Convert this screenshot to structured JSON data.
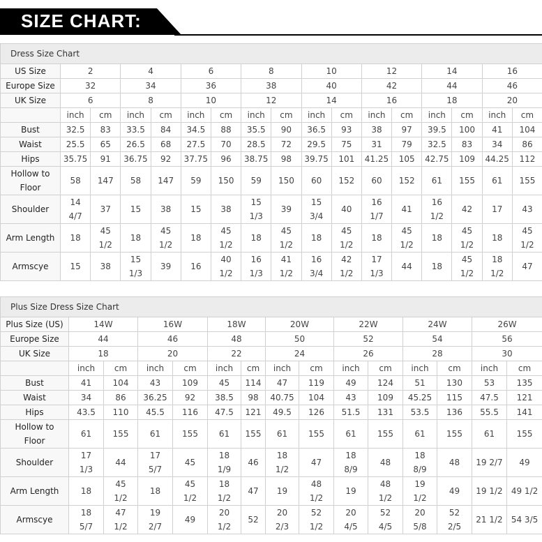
{
  "header": {
    "title": "SIZE CHART:"
  },
  "tables": [
    {
      "id": "dress",
      "title": "Dress Size Chart",
      "size_rows": [
        {
          "label": "US Size",
          "values": [
            "2",
            "4",
            "6",
            "8",
            "10",
            "12",
            "14",
            "16"
          ]
        },
        {
          "label": "Europe Size",
          "values": [
            "32",
            "34",
            "36",
            "38",
            "40",
            "42",
            "44",
            "46"
          ]
        },
        {
          "label": "UK Size",
          "values": [
            "6",
            "8",
            "10",
            "12",
            "14",
            "16",
            "18",
            "20"
          ]
        }
      ],
      "units": [
        "inch",
        "cm"
      ],
      "measure_rows": [
        {
          "label": "Bust",
          "values": [
            "32.5",
            "83",
            "33.5",
            "84",
            "34.5",
            "88",
            "35.5",
            "90",
            "36.5",
            "93",
            "38",
            "97",
            "39.5",
            "100",
            "41",
            "104"
          ]
        },
        {
          "label": "Waist",
          "values": [
            "25.5",
            "65",
            "26.5",
            "68",
            "27.5",
            "70",
            "28.5",
            "72",
            "29.5",
            "75",
            "31",
            "79",
            "32.5",
            "83",
            "34",
            "86"
          ]
        },
        {
          "label": "Hips",
          "values": [
            "35.75",
            "91",
            "36.75",
            "92",
            "37.75",
            "96",
            "38.75",
            "98",
            "39.75",
            "101",
            "41.25",
            "105",
            "42.75",
            "109",
            "44.25",
            "112"
          ]
        },
        {
          "label": "Hollow to\nFloor",
          "tall": true,
          "values": [
            "58",
            "147",
            "58",
            "147",
            "59",
            "150",
            "59",
            "150",
            "60",
            "152",
            "60",
            "152",
            "61",
            "155",
            "61",
            "155"
          ]
        },
        {
          "label": "Shoulder",
          "tall": true,
          "values": [
            "14\n4/7",
            "37",
            "15",
            "38",
            "15",
            "38",
            "15\n1/3",
            "39",
            "15\n3/4",
            "40",
            "16\n1/7",
            "41",
            "16\n1/2",
            "42",
            "17",
            "43"
          ]
        },
        {
          "label": "Arm Length",
          "tall": true,
          "values": [
            "18",
            "45\n1/2",
            "18",
            "45\n1/2",
            "18",
            "45\n1/2",
            "18",
            "45\n1/2",
            "18",
            "45\n1/2",
            "18",
            "45\n1/2",
            "18",
            "45\n1/2",
            "18",
            "45\n1/2"
          ]
        },
        {
          "label": "Armscye",
          "tall": true,
          "values": [
            "15",
            "38",
            "15\n1/3",
            "39",
            "16",
            "40\n1/2",
            "16\n1/3",
            "41\n1/2",
            "16\n3/4",
            "42\n1/2",
            "17\n1/3",
            "44",
            "18",
            "45\n1/2",
            "18\n1/2",
            "47"
          ]
        }
      ]
    },
    {
      "id": "plus",
      "title": "Plus Size Dress Size Chart",
      "size_rows": [
        {
          "label": "Plus Size (US)",
          "values": [
            "14W",
            "16W",
            "18W",
            "20W",
            "22W",
            "24W",
            "26W"
          ]
        },
        {
          "label": "Europe Size",
          "values": [
            "44",
            "46",
            "48",
            "50",
            "52",
            "54",
            "56"
          ]
        },
        {
          "label": "UK Size",
          "values": [
            "18",
            "20",
            "22",
            "24",
            "26",
            "28",
            "30"
          ]
        }
      ],
      "units": [
        "inch",
        "cm"
      ],
      "measure_rows": [
        {
          "label": "Bust",
          "values": [
            "41",
            "104",
            "43",
            "109",
            "45",
            "114",
            "47",
            "119",
            "49",
            "124",
            "51",
            "130",
            "53",
            "135"
          ]
        },
        {
          "label": "Waist",
          "values": [
            "34",
            "86",
            "36.25",
            "92",
            "38.5",
            "98",
            "40.75",
            "104",
            "43",
            "109",
            "45.25",
            "115",
            "47.5",
            "121"
          ]
        },
        {
          "label": "Hips",
          "values": [
            "43.5",
            "110",
            "45.5",
            "116",
            "47.5",
            "121",
            "49.5",
            "126",
            "51.5",
            "131",
            "53.5",
            "136",
            "55.5",
            "141"
          ]
        },
        {
          "label": "Hollow to\nFloor",
          "tall": true,
          "values": [
            "61",
            "155",
            "61",
            "155",
            "61",
            "155",
            "61",
            "155",
            "61",
            "155",
            "61",
            "155",
            "61",
            "155"
          ]
        },
        {
          "label": "Shoulder",
          "tall": true,
          "values": [
            "17\n1/3",
            "44",
            "17\n5/7",
            "45",
            "18\n1/9",
            "46",
            "18\n1/2",
            "47",
            "18\n8/9",
            "48",
            "18\n8/9",
            "48",
            "19 2/7",
            "49"
          ]
        },
        {
          "label": "Arm Length",
          "tall": true,
          "values": [
            "18",
            "45\n1/2",
            "18",
            "45\n1/2",
            "18\n1/2",
            "47",
            "19",
            "48\n1/2",
            "19",
            "48\n1/2",
            "19\n1/2",
            "49",
            "19 1/2",
            "49 1/2"
          ]
        },
        {
          "label": "Armscye",
          "tall": true,
          "values": [
            "18\n5/7",
            "47\n1/2",
            "19\n2/7",
            "49",
            "20\n1/2",
            "52",
            "20\n2/3",
            "52\n1/2",
            "20\n4/5",
            "52\n4/5",
            "20\n5/8",
            "52\n2/5",
            "21 1/2",
            "54 3/5"
          ]
        }
      ]
    }
  ]
}
